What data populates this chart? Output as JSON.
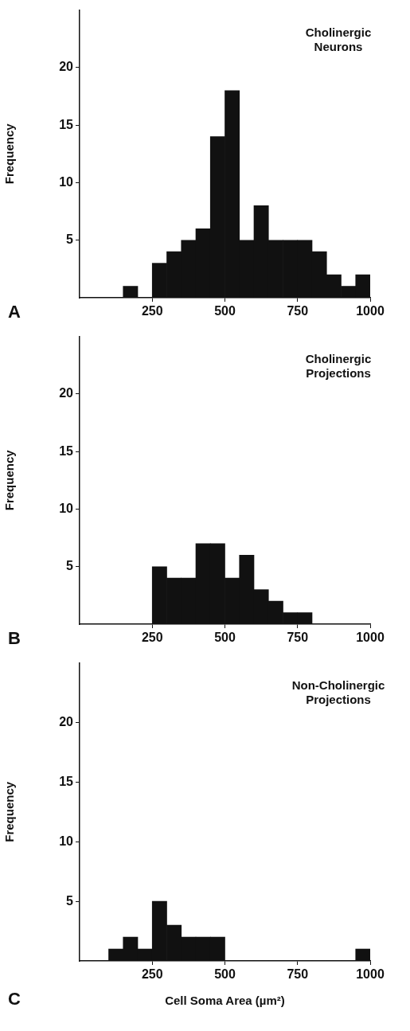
{
  "chart_data": [
    {
      "type": "histogram",
      "title": "Cholinergic Neurons",
      "ylabel": "Frequency",
      "annotations": [
        "A"
      ],
      "bins": [
        150,
        200,
        250,
        300,
        350,
        400,
        450,
        500,
        550,
        600,
        650,
        700,
        750,
        800,
        850,
        900,
        950,
        1000
      ],
      "values": [
        1,
        0,
        3,
        4,
        5,
        6,
        14,
        18,
        5,
        8,
        5,
        5,
        5,
        4,
        2,
        1,
        2
      ],
      "color": "#111111",
      "xlim": [
        0,
        1000
      ],
      "xticks": [
        250,
        500,
        750,
        1000
      ],
      "ylim": [
        0,
        25
      ],
      "yticks": [
        5,
        10,
        15,
        20
      ]
    },
    {
      "type": "histogram",
      "title": "Cholinergic Projections",
      "ylabel": "Frequency",
      "annotations": [
        "B"
      ],
      "bins": [
        250,
        300,
        350,
        400,
        450,
        500,
        550,
        600,
        650,
        700,
        750,
        800
      ],
      "values": [
        5,
        4,
        4,
        7,
        7,
        4,
        6,
        3,
        2,
        1,
        1
      ],
      "color": "#111111",
      "xlim": [
        0,
        1000
      ],
      "xticks": [
        250,
        500,
        750,
        1000
      ],
      "ylim": [
        0,
        25
      ],
      "yticks": [
        5,
        10,
        15,
        20
      ]
    },
    {
      "type": "histogram",
      "title": "Non-Cholinergic Projections",
      "ylabel": "Frequency",
      "xlabel": "Cell Soma Area (µm²)",
      "annotations": [
        "C"
      ],
      "bins": [
        100,
        150,
        200,
        250,
        300,
        350,
        400,
        450,
        500,
        550,
        600,
        650,
        700,
        750,
        800,
        850,
        900,
        950,
        1000
      ],
      "values": [
        1,
        2,
        1,
        5,
        3,
        2,
        2,
        2,
        0,
        0,
        0,
        0,
        0,
        0,
        0,
        0,
        0,
        1
      ],
      "color": "#111111",
      "xlim": [
        0,
        1000
      ],
      "xticks": [
        250,
        500,
        750,
        1000
      ],
      "ylim": [
        0,
        25
      ],
      "yticks": [
        5,
        10,
        15,
        20
      ]
    }
  ]
}
